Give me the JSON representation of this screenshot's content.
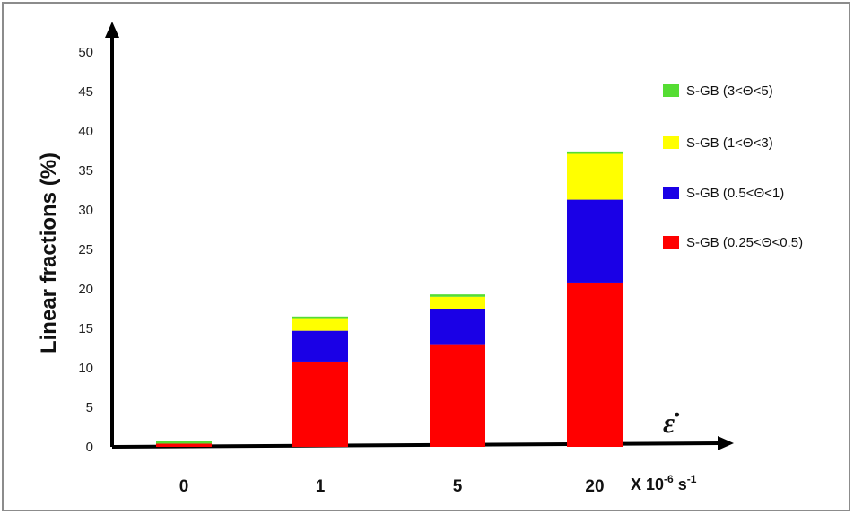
{
  "chart_data": {
    "type": "bar",
    "stacked": true,
    "categories": [
      "0",
      "1",
      "5",
      "20"
    ],
    "series": [
      {
        "name": "S-GB (0.25<Θ<0.5)",
        "color": "#ff0000",
        "values": [
          0.4,
          10.8,
          13.0,
          20.8
        ]
      },
      {
        "name": "S-GB (0.5<Θ<1)",
        "color": "#1a00e6",
        "values": [
          0.0,
          3.9,
          4.5,
          10.5
        ]
      },
      {
        "name": "S-GB (1<Θ<3)",
        "color": "#ffff00",
        "values": [
          0.0,
          1.6,
          1.5,
          5.8
        ]
      },
      {
        "name": "S-GB (3<Θ<5)",
        "color": "#55dd33",
        "values": [
          0.3,
          0.2,
          0.3,
          0.3
        ]
      }
    ],
    "legend_order": [
      "S-GB (3<Θ<5)",
      "S-GB (1<Θ<3)",
      "S-GB (0.5<Θ<1)",
      "S-GB (0.25<Θ<0.5)"
    ],
    "ylabel": "Linear fractions (%)",
    "x_symbol": "ε̇",
    "x_unit": "X 10",
    "x_unit_exp": "-6",
    "x_unit_tail": " s",
    "x_unit_tail_exp": "-1",
    "ylim": [
      0,
      50
    ],
    "yticks": [
      0,
      5,
      10,
      15,
      20,
      25,
      30,
      35,
      40,
      45,
      50
    ],
    "grid": false,
    "legend_position": "right"
  }
}
